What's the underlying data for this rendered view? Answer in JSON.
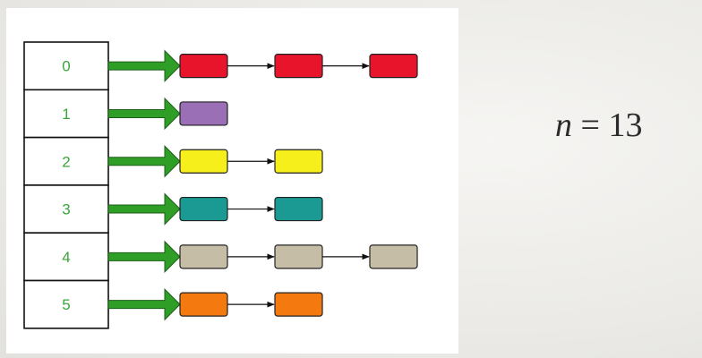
{
  "hash_table": {
    "slots": [
      {
        "index": "0",
        "nodes": [
          "#e8142c",
          "#e8142c",
          "#e8142c"
        ]
      },
      {
        "index": "1",
        "nodes": [
          "#9b6fb5"
        ]
      },
      {
        "index": "2",
        "nodes": [
          "#f7ef1c",
          "#f7ef1c"
        ]
      },
      {
        "index": "3",
        "nodes": [
          "#1a9a92",
          "#1a9a92"
        ]
      },
      {
        "index": "4",
        "nodes": [
          "#c6bda7",
          "#c6bda7",
          "#c6bda7"
        ]
      },
      {
        "index": "5",
        "nodes": [
          "#f4790f",
          "#f4790f"
        ]
      }
    ],
    "pointer_arrow_color": "#2e9e26",
    "link_arrow_color": "#111111"
  },
  "formula": {
    "variable": "n",
    "operator": "=",
    "value": "13"
  }
}
